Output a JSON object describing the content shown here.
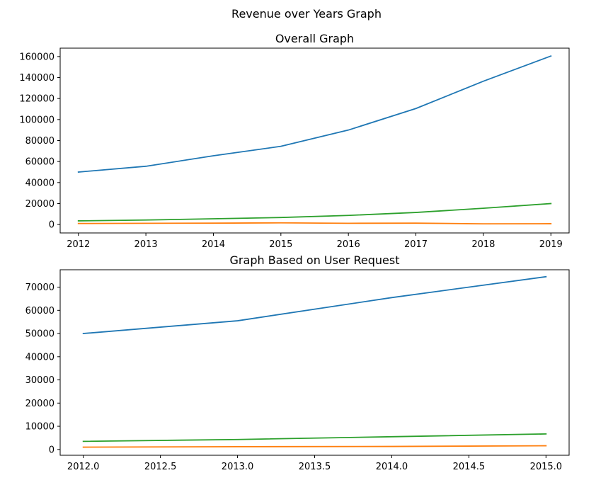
{
  "figure": {
    "suptitle": "Revenue over Years Graph"
  },
  "colors": {
    "series1": "#1f77b4",
    "series2": "#ff7f0e",
    "series3": "#2ca02c"
  },
  "chart_data": [
    {
      "type": "line",
      "title": "Overall Graph",
      "xlabel": "",
      "ylabel": "",
      "grid": false,
      "xlim": [
        2011.73,
        2019.27
      ],
      "ylim": [
        -8000,
        168000
      ],
      "xticks": [
        2012,
        2013,
        2014,
        2015,
        2016,
        2017,
        2018,
        2019
      ],
      "xtick_labels": [
        "2012",
        "2013",
        "2014",
        "2015",
        "2016",
        "2017",
        "2018",
        "2019"
      ],
      "yticks": [
        0,
        20000,
        40000,
        60000,
        80000,
        100000,
        120000,
        140000,
        160000
      ],
      "ytick_labels": [
        "0",
        "20000",
        "40000",
        "60000",
        "80000",
        "100000",
        "120000",
        "140000",
        "160000"
      ],
      "x": [
        2012,
        2013,
        2014,
        2015,
        2016,
        2017,
        2018,
        2019
      ],
      "series": [
        {
          "color": "#1f77b4",
          "values": [
            50000,
            55500,
            65500,
            74500,
            90000,
            110500,
            136500,
            160500
          ]
        },
        {
          "color": "#ff7f0e",
          "values": [
            1000,
            1200,
            1300,
            1600,
            1200,
            1300,
            700,
            800
          ]
        },
        {
          "color": "#2ca02c",
          "values": [
            3500,
            4300,
            5500,
            6700,
            8700,
            11500,
            15500,
            20000
          ]
        }
      ]
    },
    {
      "type": "line",
      "title": "Graph Based on User Request",
      "xlabel": "",
      "ylabel": "",
      "grid": false,
      "xlim": [
        2011.85,
        2015.15
      ],
      "ylim": [
        -2500,
        77500
      ],
      "xticks": [
        2012.0,
        2012.5,
        2013.0,
        2013.5,
        2014.0,
        2014.5,
        2015.0
      ],
      "xtick_labels": [
        "2012.0",
        "2012.5",
        "2013.0",
        "2013.5",
        "2014.0",
        "2014.5",
        "2015.0"
      ],
      "yticks": [
        0,
        10000,
        20000,
        30000,
        40000,
        50000,
        60000,
        70000
      ],
      "ytick_labels": [
        "0",
        "10000",
        "20000",
        "30000",
        "40000",
        "50000",
        "60000",
        "70000"
      ],
      "x": [
        2012,
        2013,
        2014,
        2015
      ],
      "series": [
        {
          "color": "#1f77b4",
          "values": [
            50000,
            55500,
            65500,
            74500
          ]
        },
        {
          "color": "#ff7f0e",
          "values": [
            1000,
            1200,
            1300,
            1600
          ]
        },
        {
          "color": "#2ca02c",
          "values": [
            3500,
            4300,
            5500,
            6700
          ]
        }
      ]
    }
  ]
}
